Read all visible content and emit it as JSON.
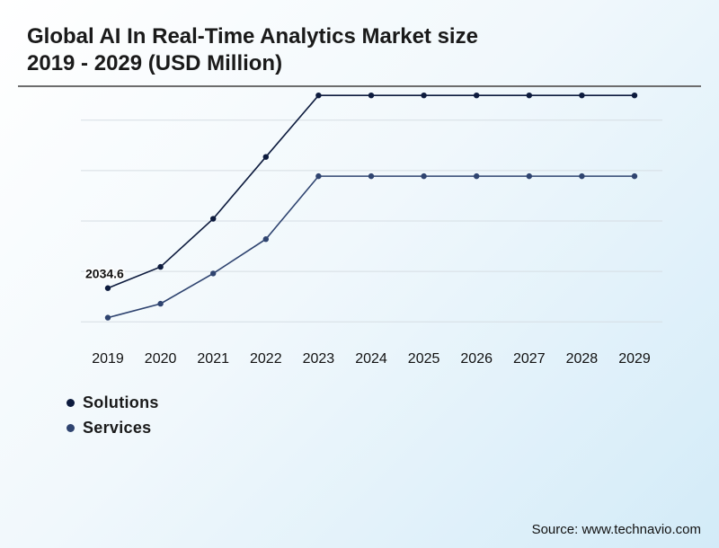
{
  "title_line1": "Global AI In Real-Time Analytics Market size",
  "title_line2": "2019 - 2029 (USD Million)",
  "source": "Source: www.technavio.com",
  "chart_data": {
    "type": "line",
    "categories": [
      "2019",
      "2020",
      "2021",
      "2022",
      "2023",
      "2024",
      "2025",
      "2026",
      "2027",
      "2028",
      "2029"
    ],
    "series": [
      {
        "name": "Solutions",
        "color": "#0d1b3e",
        "values": [
          2034.6,
          2245,
          2722,
          3335,
          3945,
          3945,
          3945,
          3945,
          3945,
          3945,
          3945
        ]
      },
      {
        "name": "Services",
        "color": "#2f4470",
        "values": [
          1742,
          1880,
          2180,
          2520,
          3144,
          3144,
          3144,
          3144,
          3144,
          3144,
          3144
        ]
      }
    ],
    "data_labels": [
      {
        "series": 0,
        "index": 0,
        "text": "2034.6"
      }
    ],
    "ylim": [
      1400,
      4000
    ],
    "grid": true,
    "legend_position": "bottom-left"
  }
}
